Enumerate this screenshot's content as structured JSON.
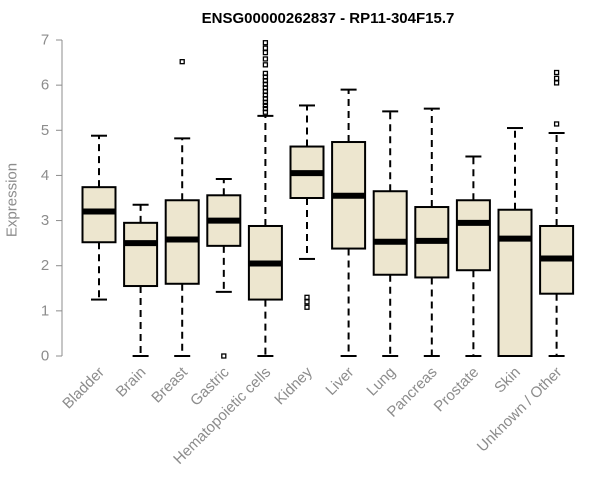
{
  "chart_data": {
    "type": "boxplot",
    "title": "ENSG00000262837 - RP11-304F15.7",
    "xlabel": "",
    "ylabel": "Expression",
    "ylim": [
      0,
      7
    ],
    "yticks": [
      "0",
      "1",
      "2",
      "3",
      "4",
      "5",
      "6",
      "7"
    ],
    "box_fill": "#ede6cf",
    "stroke_color": "#000000",
    "label_color": "#8c8c8c",
    "categories": [
      "Bladder",
      "Brain",
      "Breast",
      "Gastric",
      "Hematopoietic cells",
      "Kidney",
      "Liver",
      "Lung",
      "Pancreas",
      "Prostate",
      "Skin",
      "Unknown / Other"
    ],
    "boxes": [
      {
        "whisker_low": 1.25,
        "q1": 2.52,
        "median": 3.2,
        "q3": 3.74,
        "whisker_high": 4.88,
        "outliers": []
      },
      {
        "whisker_low": 0.0,
        "q1": 1.55,
        "median": 2.5,
        "q3": 2.95,
        "whisker_high": 3.35,
        "outliers": []
      },
      {
        "whisker_low": 0.0,
        "q1": 1.6,
        "median": 2.58,
        "q3": 3.45,
        "whisker_high": 4.82,
        "outliers": [
          6.52
        ]
      },
      {
        "whisker_low": 1.42,
        "q1": 2.44,
        "median": 3.0,
        "q3": 3.56,
        "whisker_high": 3.92,
        "outliers": [
          0.0
        ]
      },
      {
        "whisker_low": 0.0,
        "q1": 1.25,
        "median": 2.05,
        "q3": 2.88,
        "whisker_high": 5.32,
        "outliers": [
          5.4,
          5.48,
          5.55,
          5.62,
          5.7,
          5.78,
          5.86,
          5.94,
          6.02,
          6.1,
          6.18,
          6.26,
          6.45,
          6.58,
          6.72,
          6.82,
          6.94
        ]
      },
      {
        "whisker_low": 2.15,
        "q1": 3.5,
        "median": 4.05,
        "q3": 4.64,
        "whisker_high": 5.55,
        "outliers": [
          1.08,
          1.2,
          1.3
        ]
      },
      {
        "whisker_low": 0.0,
        "q1": 2.38,
        "median": 3.55,
        "q3": 4.74,
        "whisker_high": 5.9,
        "outliers": []
      },
      {
        "whisker_low": 0.0,
        "q1": 1.8,
        "median": 2.53,
        "q3": 3.65,
        "whisker_high": 5.42,
        "outliers": []
      },
      {
        "whisker_low": 0.0,
        "q1": 1.74,
        "median": 2.55,
        "q3": 3.3,
        "whisker_high": 5.48,
        "outliers": []
      },
      {
        "whisker_low": 0.0,
        "q1": 1.9,
        "median": 2.95,
        "q3": 3.45,
        "whisker_high": 4.42,
        "outliers": []
      },
      {
        "whisker_low": 0.0,
        "q1": 0.0,
        "median": 2.6,
        "q3": 3.24,
        "whisker_high": 5.05,
        "outliers": []
      },
      {
        "whisker_low": 0.0,
        "q1": 1.38,
        "median": 2.16,
        "q3": 2.88,
        "whisker_high": 4.94,
        "outliers": [
          5.14,
          6.05,
          6.15,
          6.28
        ]
      }
    ]
  }
}
